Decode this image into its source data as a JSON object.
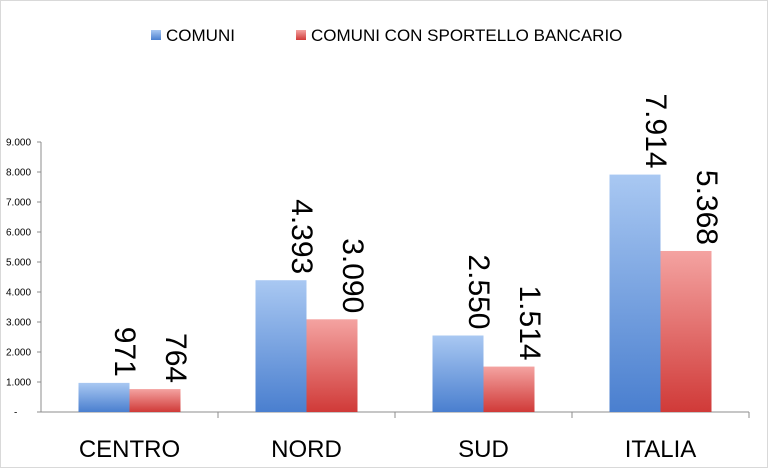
{
  "chart_data": {
    "type": "bar",
    "title": "",
    "xlabel": "",
    "ylabel": "",
    "categories": [
      "CENTRO",
      "NORD",
      "SUD",
      "ITALIA"
    ],
    "series": [
      {
        "name": "COMUNI",
        "values": [
          971,
          4393,
          2550,
          7914
        ],
        "labels": [
          "971",
          "4.393",
          "2.550",
          "7.914"
        ],
        "color": "#4F81BD"
      },
      {
        "name": "COMUNI CON SPORTELLO BANCARIO",
        "values": [
          764,
          3090,
          1514,
          5368
        ],
        "labels": [
          "764",
          "3.090",
          "1.514",
          "5.368"
        ],
        "color": "#C0504D"
      }
    ],
    "ylim": [
      0,
      9000
    ],
    "yticks": [
      0,
      1000,
      2000,
      3000,
      4000,
      5000,
      6000,
      7000,
      8000,
      9000
    ],
    "ytick_labels": [
      "-",
      "1.000",
      "2.000",
      "3.000",
      "4.000",
      "5.000",
      "6.000",
      "7.000",
      "8.000",
      "9.000"
    ],
    "legend_position": "top",
    "grid": false
  }
}
